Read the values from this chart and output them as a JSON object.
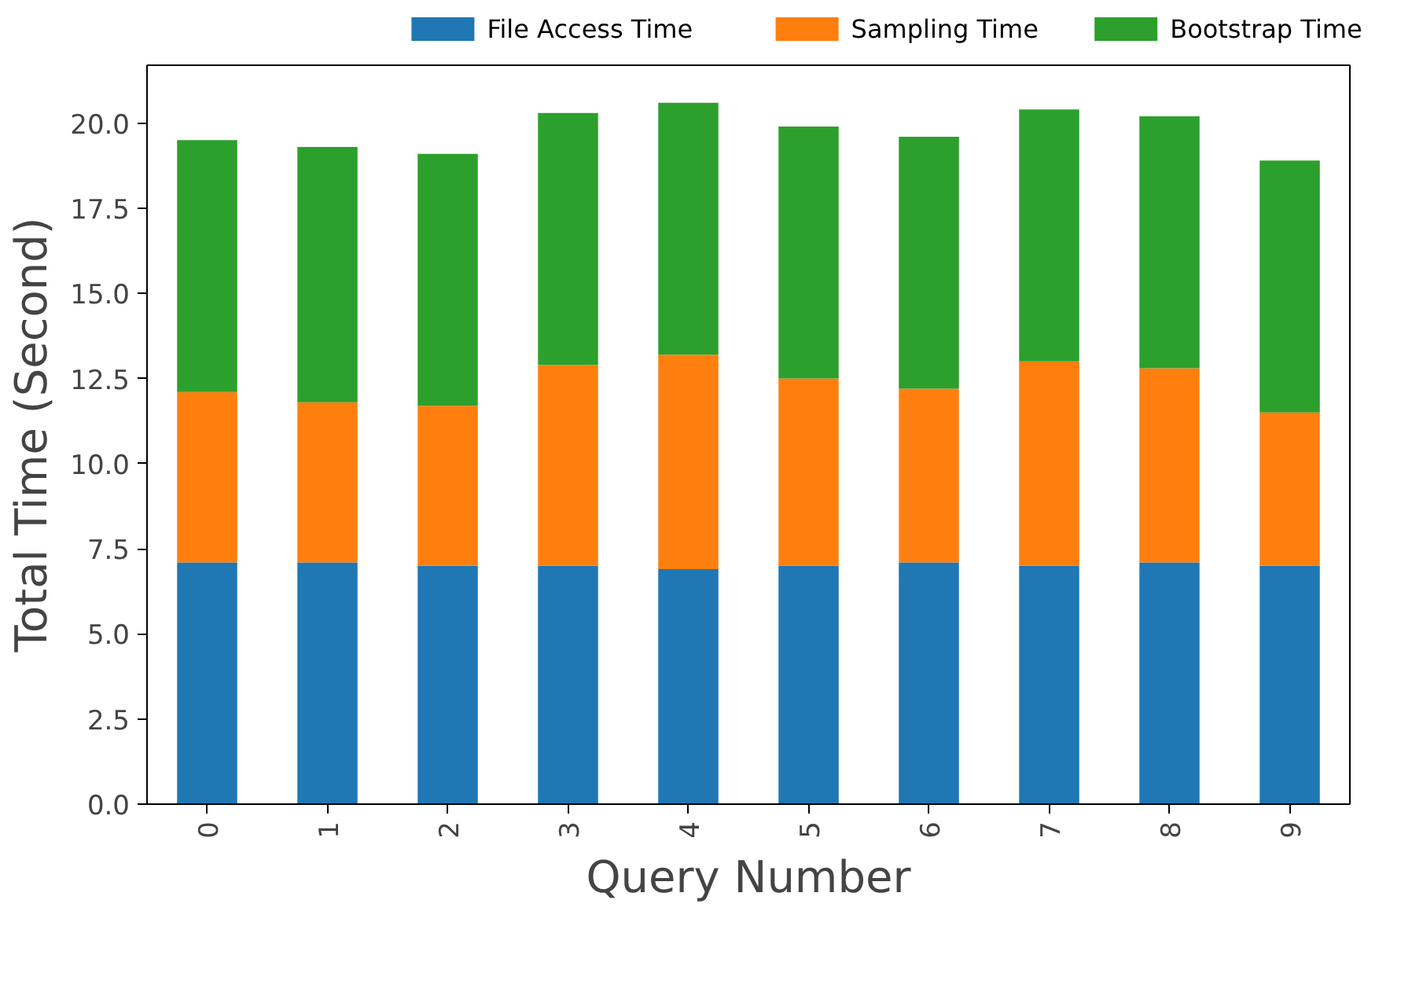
{
  "chart_data": {
    "type": "bar",
    "stacked": true,
    "xlabel": "Query Number",
    "ylabel": "Total Time (Second)",
    "categories": [
      "0",
      "1",
      "2",
      "3",
      "4",
      "5",
      "6",
      "7",
      "8",
      "9"
    ],
    "series": [
      {
        "name": "File Access Time",
        "color": "#1f77b4",
        "values": [
          7.1,
          7.1,
          7.0,
          7.0,
          6.9,
          7.0,
          7.1,
          7.0,
          7.1,
          7.0
        ]
      },
      {
        "name": "Sampling Time",
        "color": "#ff7f0e",
        "values": [
          5.0,
          4.7,
          4.7,
          5.9,
          6.3,
          5.5,
          5.1,
          6.0,
          5.7,
          4.5
        ]
      },
      {
        "name": "Bootstrap Time",
        "color": "#2ca02c",
        "values": [
          7.4,
          7.5,
          7.4,
          7.4,
          7.4,
          7.4,
          7.4,
          7.4,
          7.4,
          7.4
        ]
      }
    ],
    "ylim": [
      0,
      21.7
    ],
    "yticks": [
      {
        "value": 0,
        "label": "0.0"
      },
      {
        "value": 2.5,
        "label": "2.5"
      },
      {
        "value": 5,
        "label": "5.0"
      },
      {
        "value": 7.5,
        "label": "7.5"
      },
      {
        "value": 10,
        "label": "10.0"
      },
      {
        "value": 12.5,
        "label": "12.5"
      },
      {
        "value": 15,
        "label": "15.0"
      },
      {
        "value": 17.5,
        "label": "17.5"
      },
      {
        "value": 20,
        "label": "20.0"
      }
    ],
    "grid": false,
    "legend": "top"
  }
}
